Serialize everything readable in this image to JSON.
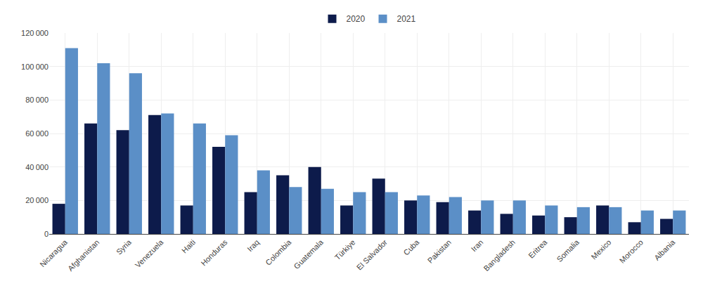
{
  "chart_data": {
    "type": "bar",
    "categories": [
      "Nicaragua",
      "Afghanistan",
      "Syria",
      "Venezuela",
      "Haiti",
      "Honduras",
      "Iraq",
      "Colombia",
      "Guatemala",
      "Türkiye",
      "El Salvador",
      "Cuba",
      "Pakistan",
      "Iran",
      "Bangladesh",
      "Eritrea",
      "Somalia",
      "Mexico",
      "Morocco",
      "Albania"
    ],
    "series": [
      {
        "name": "2020",
        "color": "#0d1b4b",
        "values": [
          18000,
          66000,
          62000,
          71000,
          17000,
          52000,
          25000,
          35000,
          40000,
          17000,
          33000,
          20000,
          19000,
          14000,
          12000,
          11000,
          10000,
          17000,
          7000,
          9000
        ]
      },
      {
        "name": "2021",
        "color": "#5b8fc7",
        "values": [
          111000,
          102000,
          96000,
          72000,
          66000,
          59000,
          38000,
          28000,
          27000,
          25000,
          25000,
          23000,
          22000,
          20000,
          20000,
          17000,
          16000,
          16000,
          14000,
          14000
        ]
      }
    ],
    "ylim": [
      0,
      120000
    ],
    "yticks": [
      0,
      {
        "value": 20000,
        "label": "20 000"
      },
      {
        "value": 40000,
        "label": "40 000"
      },
      {
        "value": 60000,
        "label": "60 000"
      },
      {
        "value": 80000,
        "label": "80 000"
      },
      {
        "value": 100000,
        "label": "100 000"
      },
      {
        "value": 120000,
        "label": "120 000"
      }
    ],
    "grid": true,
    "legend": "top"
  }
}
